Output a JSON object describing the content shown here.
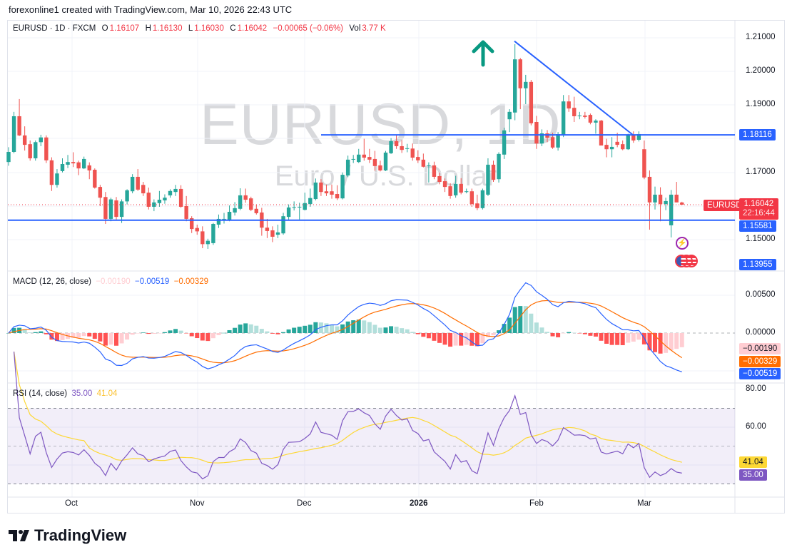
{
  "header": {
    "attribution": "forexonline1 created with TradingView.com, Mar 10, 2026 22:43 UTC"
  },
  "legend": {
    "symbol": "EURUSD · 1D · FXCM",
    "open_label": "O",
    "open": "1.16107",
    "high_label": "H",
    "high": "1.16130",
    "low_label": "L",
    "low": "1.16030",
    "close_label": "C",
    "close": "1.16042",
    "change": "−0.00065 (−0.06%)",
    "vol_label": "Vol",
    "vol": "3.77 K"
  },
  "watermark": {
    "title": "EURUSD, 1D",
    "subtitle": "Euro / U.S. Dollar"
  },
  "price_axis": {
    "ticks": [
      "1.21000",
      "1.20000",
      "1.19000",
      "1.17000",
      "1.15000"
    ],
    "last_symbol_tag": "EURUSD",
    "last_price": "1.16042",
    "countdown": "22:16:44",
    "level_high": "1.18116",
    "level_low": "1.15581",
    "level_bottom": "1.13955"
  },
  "macd": {
    "title": "MACD (12, 26, close)",
    "hist": "−0.00190",
    "macd": "−0.00519",
    "signal": "−0.00329",
    "ticks": [
      "0.00500",
      "0.00000"
    ]
  },
  "rsi": {
    "title": "RSI (14, close)",
    "value": "35.00",
    "ma": "41.04",
    "ticks": [
      "80.00",
      "60.00"
    ]
  },
  "time_axis": [
    "Oct",
    "Nov",
    "Dec",
    "2026",
    "Feb",
    "Mar"
  ],
  "logo": {
    "text": "TradingView"
  },
  "colors": {
    "up": "#26a69a",
    "down": "#ef5350",
    "line": "#2962ff",
    "macd": "#2962ff",
    "signal": "#ff6d00",
    "rsi": "#7e57c2",
    "rsi_ma": "#fdd835",
    "arrow": "#089981"
  },
  "icons": {
    "arrow": "arrow-up-icon",
    "lightning": "lightning-icon",
    "flag": "us-flag-icon"
  },
  "chart_data": {
    "type": "candlestick",
    "symbol": "EURUSD",
    "interval": "1D",
    "ylim": [
      1.1396,
      1.2115
    ],
    "horizontal_levels": [
      1.18116,
      1.15581
    ],
    "trendline": {
      "from_price": 1.209,
      "to_price": 1.181
    },
    "x_ticks": [
      "Oct",
      "Nov",
      "Dec",
      "2026",
      "Feb",
      "Mar"
    ],
    "ohlc": [
      [
        1.1731,
        1.1775,
        1.172,
        1.1761
      ],
      [
        1.1761,
        1.188,
        1.1757,
        1.1867
      ],
      [
        1.1867,
        1.1918,
        1.1808,
        1.181
      ],
      [
        1.181,
        1.1837,
        1.1765,
        1.1782
      ],
      [
        1.1784,
        1.1795,
        1.1735,
        1.1742
      ],
      [
        1.1742,
        1.1795,
        1.1735,
        1.179
      ],
      [
        1.179,
        1.1812,
        1.1778,
        1.1804
      ],
      [
        1.1804,
        1.181,
        1.1728,
        1.1736
      ],
      [
        1.1736,
        1.1745,
        1.1645,
        1.1663
      ],
      [
        1.1663,
        1.171,
        1.1655,
        1.1697
      ],
      [
        1.1704,
        1.1742,
        1.17,
        1.1725
      ],
      [
        1.1723,
        1.1752,
        1.1713,
        1.1731
      ],
      [
        1.1731,
        1.176,
        1.1716,
        1.1727
      ],
      [
        1.173,
        1.1735,
        1.1692,
        1.1712
      ],
      [
        1.1712,
        1.1747,
        1.171,
        1.174
      ],
      [
        1.1721,
        1.173,
        1.168,
        1.1706
      ],
      [
        1.1708,
        1.1712,
        1.1652,
        1.1655
      ],
      [
        1.1657,
        1.1663,
        1.16,
        1.1625
      ],
      [
        1.1627,
        1.1642,
        1.1547,
        1.1562
      ],
      [
        1.1562,
        1.1625,
        1.1555,
        1.162
      ],
      [
        1.1617,
        1.1627,
        1.156,
        1.1568
      ],
      [
        1.1568,
        1.162,
        1.155,
        1.1614
      ],
      [
        1.1614,
        1.165,
        1.1605,
        1.1647
      ],
      [
        1.1644,
        1.1695,
        1.1638,
        1.1687
      ],
      [
        1.1687,
        1.171,
        1.1645,
        1.1649
      ],
      [
        1.1663,
        1.1672,
        1.163,
        1.1638
      ],
      [
        1.164,
        1.1655,
        1.159,
        1.1598
      ],
      [
        1.1598,
        1.162,
        1.1585,
        1.1611
      ],
      [
        1.1609,
        1.1645,
        1.1598,
        1.1619
      ],
      [
        1.1617,
        1.1635,
        1.1607,
        1.1625
      ],
      [
        1.1632,
        1.165,
        1.1625,
        1.1645
      ],
      [
        1.1642,
        1.1663,
        1.163,
        1.1651
      ],
      [
        1.1651,
        1.1662,
        1.1595,
        1.1598
      ],
      [
        1.16,
        1.163,
        1.1555,
        1.1562
      ],
      [
        1.1564,
        1.157,
        1.152,
        1.1532
      ],
      [
        1.1535,
        1.1545,
        1.1515,
        1.1525
      ],
      [
        1.1525,
        1.154,
        1.1475,
        1.1487
      ],
      [
        1.1487,
        1.1503,
        1.1473,
        1.1497
      ],
      [
        1.149,
        1.155,
        1.1485,
        1.1547
      ],
      [
        1.1545,
        1.1575,
        1.1535,
        1.1562
      ],
      [
        1.156,
        1.158,
        1.1548,
        1.1562
      ],
      [
        1.1558,
        1.1602,
        1.1555,
        1.1583
      ],
      [
        1.1581,
        1.1612,
        1.1572,
        1.1594
      ],
      [
        1.1592,
        1.1653,
        1.1588,
        1.1632
      ],
      [
        1.1632,
        1.1652,
        1.161,
        1.1619
      ],
      [
        1.1623,
        1.1628,
        1.1585,
        1.1589
      ],
      [
        1.1592,
        1.1605,
        1.1575,
        1.1579
      ],
      [
        1.1581,
        1.1595,
        1.1512,
        1.1536
      ],
      [
        1.1536,
        1.1562,
        1.1505,
        1.1526
      ],
      [
        1.1528,
        1.154,
        1.1493,
        1.1509
      ],
      [
        1.1515,
        1.1545,
        1.1505,
        1.1522
      ],
      [
        1.1519,
        1.158,
        1.1515,
        1.157
      ],
      [
        1.1568,
        1.1605,
        1.1557,
        1.1596
      ],
      [
        1.1595,
        1.1614,
        1.1587,
        1.1597
      ],
      [
        1.1597,
        1.161,
        1.156,
        1.1598
      ],
      [
        1.1589,
        1.164,
        1.1587,
        1.1609
      ],
      [
        1.1606,
        1.1652,
        1.1598,
        1.1624
      ],
      [
        1.1621,
        1.1682,
        1.1617,
        1.167
      ],
      [
        1.167,
        1.168,
        1.163,
        1.1642
      ],
      [
        1.1644,
        1.1664,
        1.163,
        1.1638
      ],
      [
        1.1644,
        1.1664,
        1.1622,
        1.1634
      ],
      [
        1.1636,
        1.1662,
        1.1618,
        1.1623
      ],
      [
        1.1623,
        1.17,
        1.162,
        1.1693
      ],
      [
        1.1691,
        1.175,
        1.1686,
        1.1738
      ],
      [
        1.1738,
        1.1752,
        1.1728,
        1.174
      ],
      [
        1.1731,
        1.177,
        1.1728,
        1.1753
      ],
      [
        1.1753,
        1.18,
        1.1735,
        1.1744
      ],
      [
        1.1746,
        1.177,
        1.1728,
        1.1738
      ],
      [
        1.174,
        1.1764,
        1.1705,
        1.1719
      ],
      [
        1.1721,
        1.1735,
        1.1703,
        1.1706
      ],
      [
        1.1706,
        1.1764,
        1.1704,
        1.1759
      ],
      [
        1.1757,
        1.1802,
        1.1755,
        1.1793
      ],
      [
        1.1793,
        1.181,
        1.177,
        1.1778
      ],
      [
        1.1778,
        1.1796,
        1.1758,
        1.1767
      ],
      [
        1.1771,
        1.1785,
        1.176,
        1.1772
      ],
      [
        1.1771,
        1.1786,
        1.1735,
        1.1744
      ],
      [
        1.1746,
        1.1766,
        1.1728,
        1.1736
      ],
      [
        1.1738,
        1.1756,
        1.1715,
        1.1717
      ],
      [
        1.1721,
        1.173,
        1.167,
        1.1721
      ],
      [
        1.1721,
        1.1732,
        1.168,
        1.1687
      ],
      [
        1.1689,
        1.17,
        1.1665,
        1.1672
      ],
      [
        1.1674,
        1.1682,
        1.1642,
        1.1657
      ],
      [
        1.1659,
        1.1668,
        1.1622,
        1.163
      ],
      [
        1.1632,
        1.169,
        1.1625,
        1.1666
      ],
      [
        1.1666,
        1.1683,
        1.1635,
        1.164
      ],
      [
        1.1644,
        1.1652,
        1.1638,
        1.1644
      ],
      [
        1.1644,
        1.1652,
        1.1598,
        1.1606
      ],
      [
        1.1608,
        1.1634,
        1.1588,
        1.1594
      ],
      [
        1.1594,
        1.1652,
        1.159,
        1.1647
      ],
      [
        1.1634,
        1.1742,
        1.163,
        1.1723
      ],
      [
        1.1723,
        1.1735,
        1.1672,
        1.1678
      ],
      [
        1.168,
        1.176,
        1.167,
        1.1755
      ],
      [
        1.1753,
        1.1833,
        1.174,
        1.1825
      ],
      [
        1.1858,
        1.1888,
        1.182,
        1.188
      ],
      [
        1.1878,
        1.2081,
        1.1855,
        1.2036
      ],
      [
        1.2036,
        1.204,
        1.1888,
        1.195
      ],
      [
        1.195,
        1.199,
        1.1903,
        1.1969
      ],
      [
        1.1969,
        1.1975,
        1.184,
        1.1846
      ],
      [
        1.185,
        1.1868,
        1.177,
        1.1786
      ],
      [
        1.1786,
        1.1828,
        1.1778,
        1.1816
      ],
      [
        1.1816,
        1.1826,
        1.179,
        1.1803
      ],
      [
        1.1805,
        1.1818,
        1.177,
        1.1774
      ],
      [
        1.1774,
        1.182,
        1.1765,
        1.1814
      ],
      [
        1.181,
        1.193,
        1.1805,
        1.1911
      ],
      [
        1.1911,
        1.193,
        1.188,
        1.189
      ],
      [
        1.1892,
        1.1925,
        1.185,
        1.1867
      ],
      [
        1.1869,
        1.188,
        1.1858,
        1.1869
      ],
      [
        1.1869,
        1.188,
        1.186,
        1.1865
      ],
      [
        1.1871,
        1.1875,
        1.1843,
        1.1848
      ],
      [
        1.1848,
        1.1858,
        1.1815,
        1.1854
      ],
      [
        1.1854,
        1.1856,
        1.178,
        1.178
      ],
      [
        1.1782,
        1.18,
        1.1745,
        1.1769
      ],
      [
        1.1769,
        1.1805,
        1.1745,
        1.1776
      ],
      [
        1.1791,
        1.1818,
        1.1775,
        1.1782
      ],
      [
        1.1784,
        1.1795,
        1.1766,
        1.1769
      ],
      [
        1.1769,
        1.1815,
        1.1767,
        1.1812
      ],
      [
        1.1812,
        1.1822,
        1.1788,
        1.1795
      ],
      [
        1.1797,
        1.1822,
        1.1792,
        1.1814
      ],
      [
        1.1769,
        1.1795,
        1.168,
        1.1685
      ],
      [
        1.1687,
        1.1706,
        1.153,
        1.1611
      ],
      [
        1.1611,
        1.1658,
        1.159,
        1.1634
      ],
      [
        1.1634,
        1.1656,
        1.1555,
        1.1606
      ],
      [
        1.1606,
        1.1625,
        1.1588,
        1.1615
      ],
      [
        1.1543,
        1.1648,
        1.1507,
        1.1634
      ],
      [
        1.1634,
        1.1672,
        1.1611,
        1.1611
      ],
      [
        1.16107,
        1.1613,
        1.1603,
        1.16042
      ]
    ],
    "indicators": {
      "macd": {
        "fast": 12,
        "slow": 26,
        "source": "close",
        "last": {
          "hist": -0.0019,
          "macd": -0.00519,
          "signal": -0.00329
        },
        "ylim": [
          -0.0057,
          0.0082
        ]
      },
      "rsi": {
        "length": 14,
        "source": "close",
        "last": {
          "rsi": 35.0,
          "ma": 41.04
        },
        "bands": [
          70,
          50,
          30
        ],
        "ylim": [
          27,
          83
        ]
      }
    }
  }
}
